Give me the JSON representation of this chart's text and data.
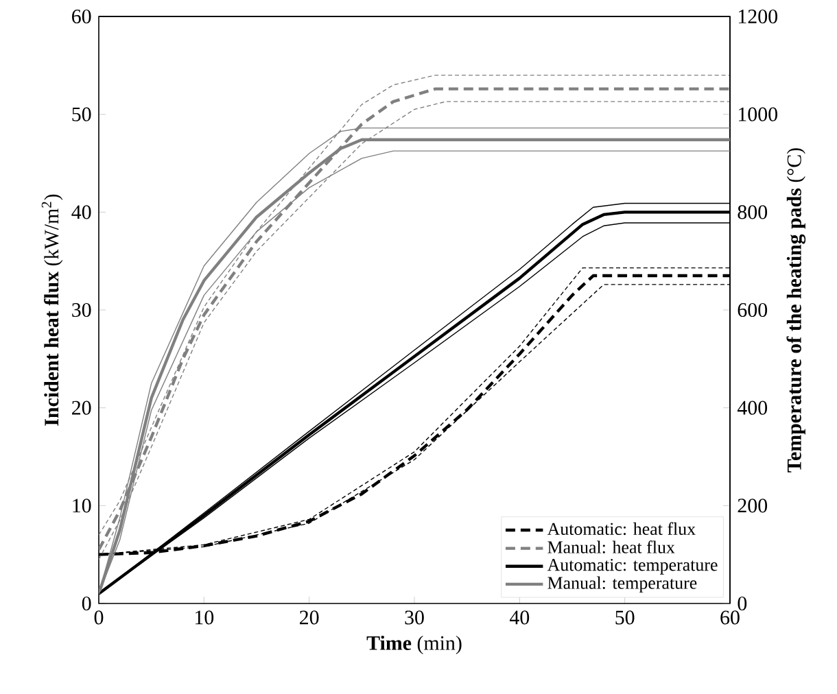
{
  "chart_data": {
    "type": "line",
    "xlabel": "**Time** (min)",
    "ylabel": "**Incident heat flux** (kW/m$^{2}$)",
    "y2label": "**Temperature of the heating pads** (°C)",
    "xlim": [
      0,
      60
    ],
    "xticks": [
      0,
      10,
      20,
      30,
      40,
      50,
      60
    ],
    "ylim": [
      0,
      60
    ],
    "yticks": [
      0,
      10,
      20,
      30,
      40,
      50,
      60
    ],
    "y2lim": [
      0,
      1200
    ],
    "y2ticks": [
      0,
      200,
      400,
      600,
      800,
      1000,
      1200
    ],
    "legend": "bottom right",
    "marker": "none",
    "grid": false,
    "series": [
      {
        "name": "Automatic: heat flux",
        "color": "#000000",
        "line_style": "dashed",
        "x": [
          0,
          5,
          10,
          15,
          20,
          25,
          30,
          35,
          40,
          45,
          47,
          50,
          60
        ],
        "values": [
          5,
          5.2,
          5.9,
          6.9,
          8.4,
          11.2,
          15.1,
          19.8,
          25.5,
          31.5,
          33.5,
          33.5,
          33.5
        ]
      },
      {
        "name": "Manual: heat flux",
        "color": "#808080",
        "line_style": "dashed",
        "x": [
          0,
          2,
          5,
          8,
          10,
          15,
          20,
          25,
          28,
          32,
          60
        ],
        "values": [
          5.5,
          9.5,
          17,
          25,
          29.5,
          37,
          43,
          49,
          51.3,
          52.6,
          52.6
        ]
      },
      {
        "name": "Automatic: temperature",
        "color": "#000000",
        "line_style": "solid",
        "axis": "y2",
        "x": [
          0,
          10,
          20,
          30,
          40,
          46,
          48,
          50,
          60
        ],
        "values": [
          20,
          180,
          345,
          505,
          665,
          775,
          795,
          800,
          800
        ]
      },
      {
        "name": "Manual: temperature",
        "color": "#808080",
        "line_style": "solid",
        "axis": "y2",
        "x": [
          0,
          2,
          5,
          8,
          10,
          15,
          20,
          23,
          25,
          60
        ],
        "values": [
          20,
          150,
          420,
          580,
          660,
          790,
          880,
          930,
          948,
          948
        ]
      },
      {
        "color": "#000000",
        "line_style": "dashed",
        "x": [
          0,
          10,
          20,
          30,
          40,
          46,
          60
        ],
        "values": [
          5,
          6,
          8.6,
          15.5,
          26.3,
          34.3,
          34.3
        ]
      },
      {
        "color": "#000000",
        "line_style": "dashed",
        "x": [
          0,
          10,
          20,
          30,
          40,
          48,
          60
        ],
        "values": [
          5,
          5.8,
          8.2,
          14.7,
          24.7,
          32.6,
          32.6
        ]
      },
      {
        "color": "#808080",
        "line_style": "dashed",
        "x": [
          0,
          2,
          5,
          10,
          15,
          20,
          25,
          28,
          32,
          60
        ],
        "values": [
          7,
          10.5,
          18,
          30.3,
          38,
          44.5,
          51,
          53,
          54,
          54
        ]
      },
      {
        "color": "#808080",
        "line_style": "dashed",
        "x": [
          0,
          2,
          5,
          10,
          15,
          20,
          25,
          30,
          33,
          60
        ],
        "values": [
          4.5,
          8.5,
          16,
          28.7,
          36,
          41.5,
          47,
          50.5,
          51.3,
          51.3
        ]
      },
      {
        "color": "#000000",
        "line_style": "solid",
        "axis": "y2",
        "x": [
          0,
          10,
          20,
          30,
          40,
          45,
          47,
          50,
          60
        ],
        "values": [
          20,
          185,
          352,
          518,
          683,
          775,
          810,
          818,
          818
        ]
      },
      {
        "color": "#000000",
        "line_style": "solid",
        "axis": "y2",
        "x": [
          0,
          10,
          20,
          30,
          40,
          46,
          48,
          50,
          60
        ],
        "values": [
          20,
          175,
          338,
          492,
          648,
          750,
          772,
          778,
          778
        ]
      },
      {
        "color": "#808080",
        "line_style": "solid",
        "axis": "y2",
        "x": [
          0,
          2,
          5,
          10,
          15,
          20,
          23,
          25,
          60
        ],
        "values": [
          20,
          175,
          450,
          690,
          820,
          920,
          965,
          972,
          972
        ]
      },
      {
        "color": "#808080",
        "line_style": "solid",
        "axis": "y2",
        "x": [
          0,
          2,
          5,
          10,
          15,
          20,
          25,
          28,
          60
        ],
        "values": [
          20,
          130,
          395,
          630,
          760,
          850,
          910,
          925,
          925
        ]
      }
    ]
  }
}
